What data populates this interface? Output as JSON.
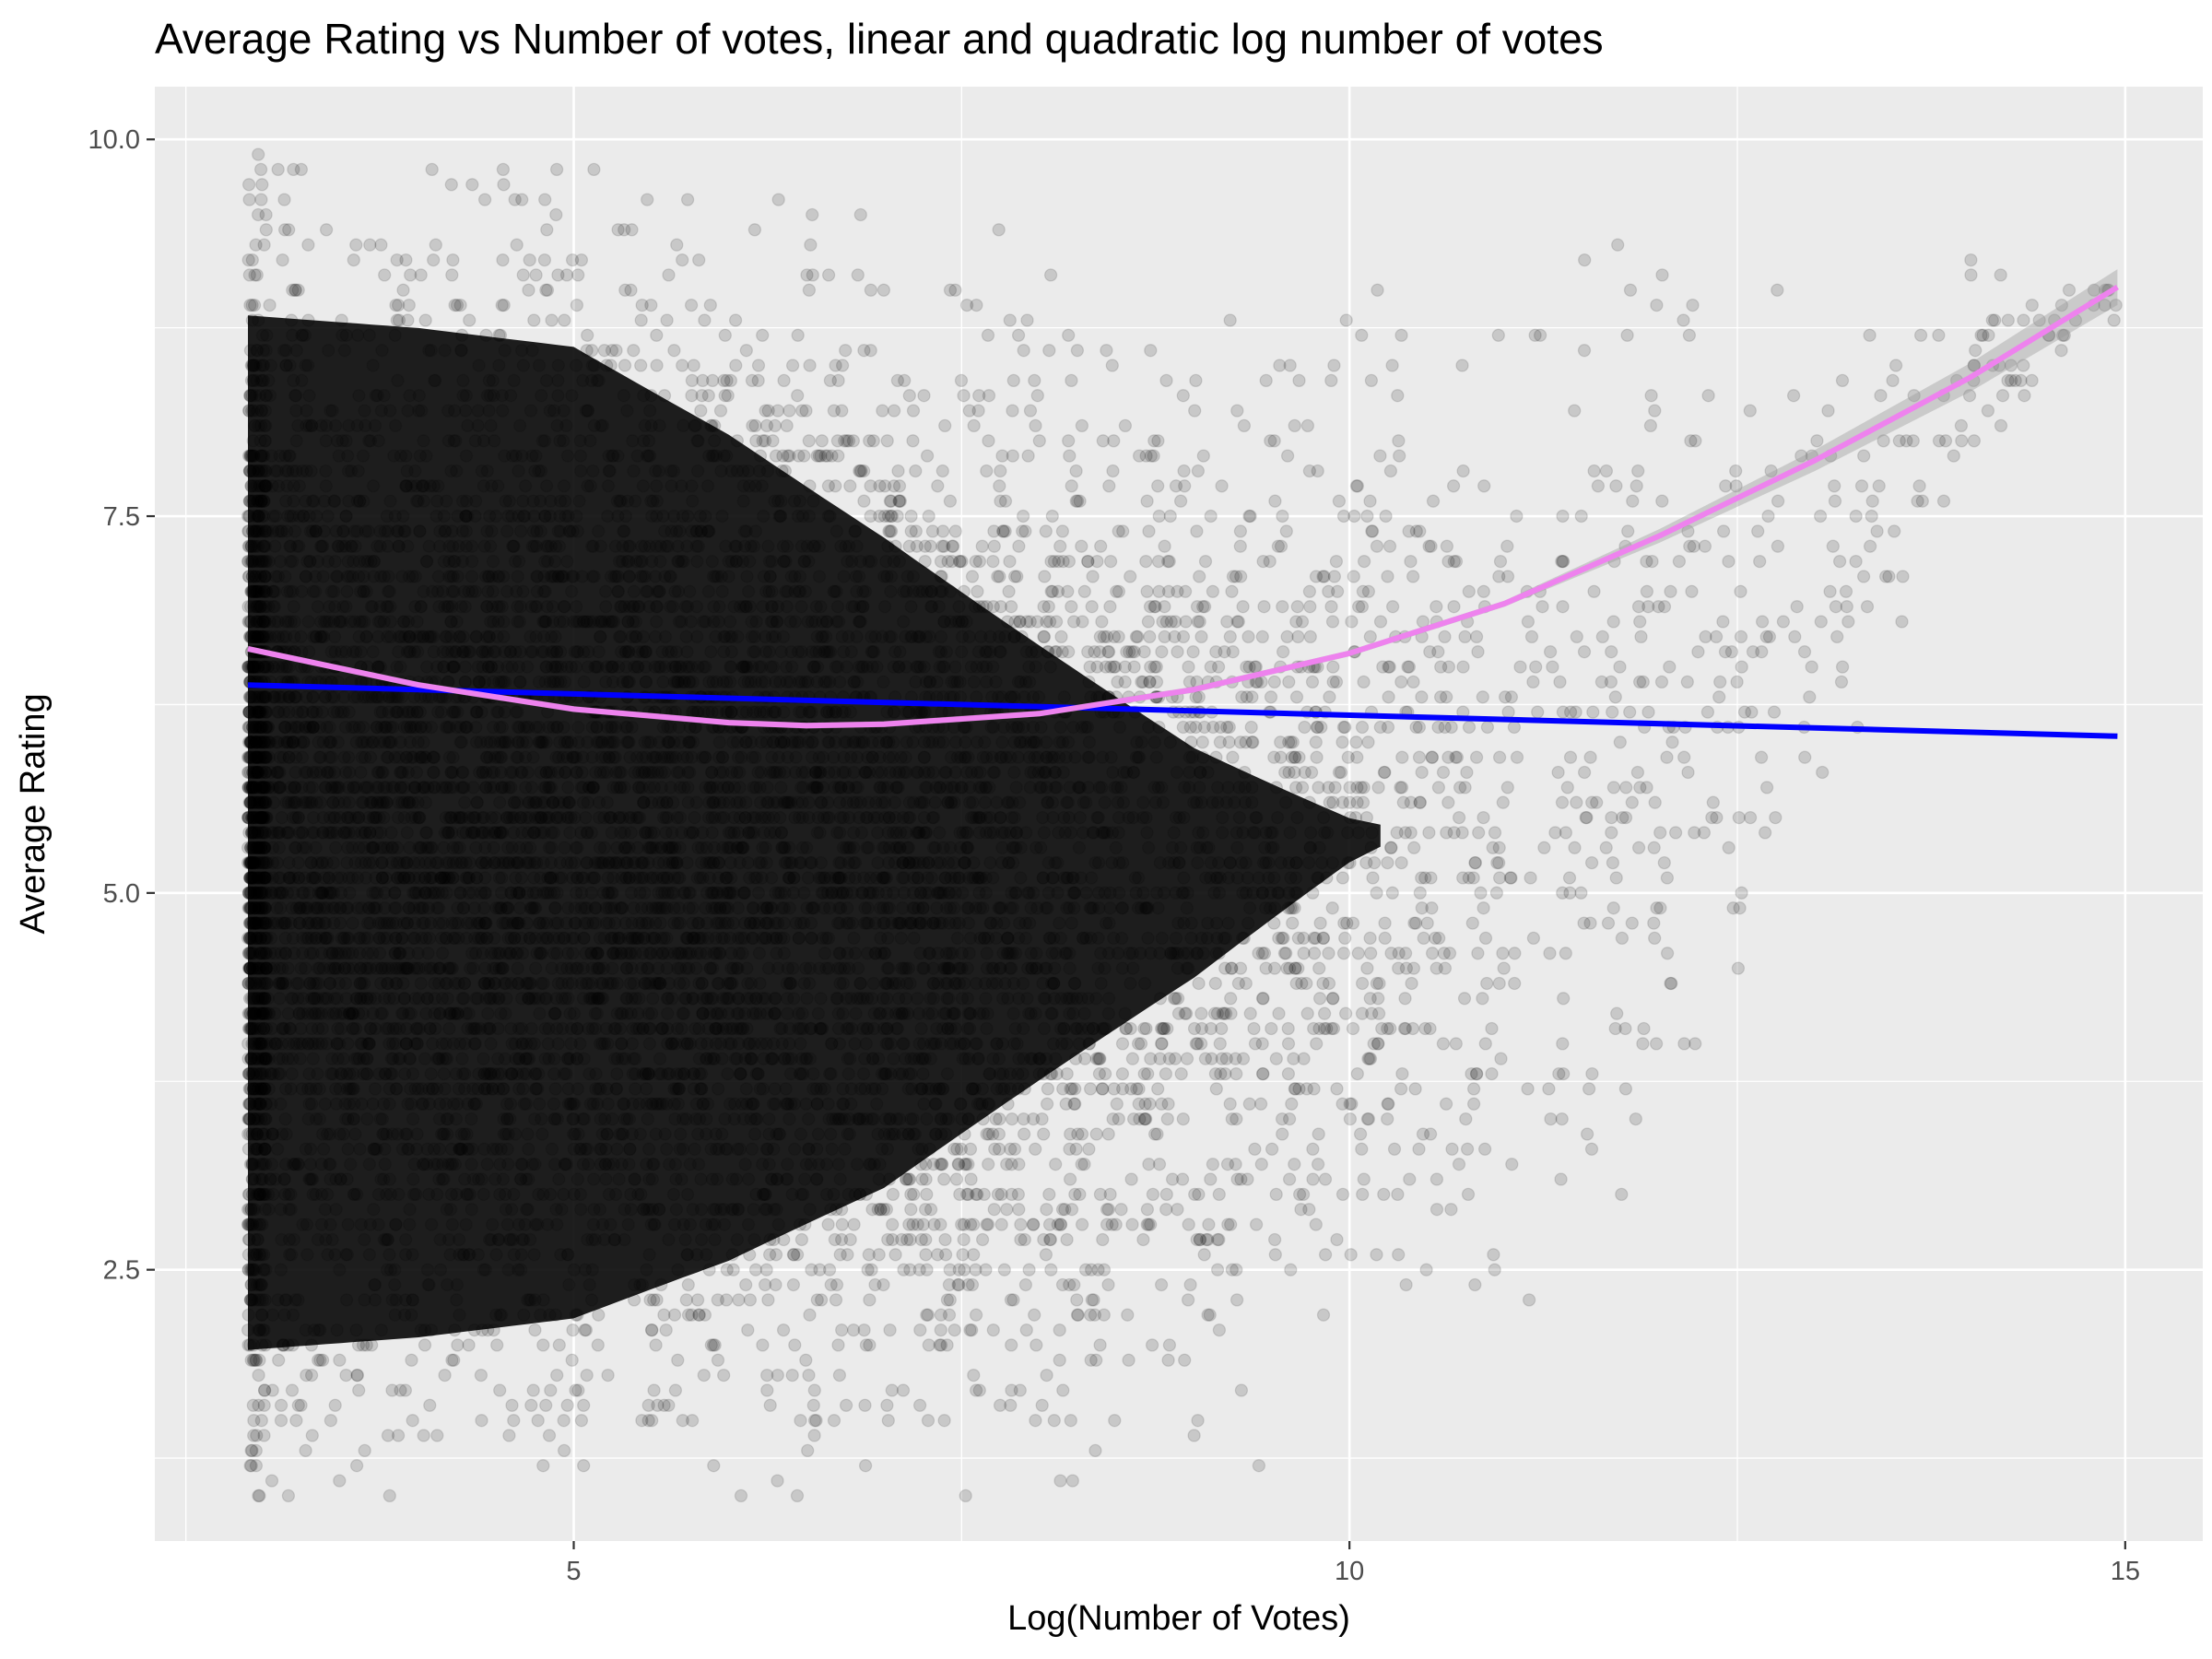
{
  "chart_data": {
    "type": "scatter",
    "title": "Average Rating vs Number of votes, linear and quadratic log number of votes",
    "xlabel": "Log(Number of Votes)",
    "ylabel": "Average Rating",
    "xlim": [
      2.3,
      15.5
    ],
    "ylim": [
      0.7,
      10.35
    ],
    "x_ticks": [
      5,
      10,
      15
    ],
    "x_tick_labels": [
      "5",
      "10",
      "15"
    ],
    "y_ticks": [
      2.5,
      5.0,
      7.5,
      10.0
    ],
    "y_tick_labels": [
      "2.5",
      "5.0",
      "7.5",
      "10.0"
    ],
    "grid": true,
    "legend": "none",
    "colors": {
      "panel": "#ebebeb",
      "grid": "#ffffff",
      "points": "#000000",
      "linear_fit": "#0000ff",
      "quadratic_fit": "#ee82ee",
      "ribbon": "#999999"
    },
    "point_cloud": {
      "x_min": 2.9,
      "x_max": 14.95,
      "rating_step": 0.1,
      "point_alpha": 0.15
    },
    "series": [
      {
        "kind": "scatter-density",
        "x_center": [
          2.9,
          4,
          5,
          6,
          7,
          8,
          9,
          10,
          11,
          12,
          13,
          14,
          14.9
        ],
        "y_top": [
          9.8,
          9.8,
          9.8,
          9.6,
          9.4,
          9.3,
          9.2,
          9.2,
          9.2,
          9.3,
          9.2,
          9.1,
          9.3
        ],
        "y_bottom": [
          1.0,
          1.0,
          1.0,
          1.0,
          1.0,
          1.1,
          1.2,
          1.5,
          1.8,
          3.0,
          4.8,
          7.5,
          8.8
        ],
        "density": [
          1.0,
          0.98,
          0.95,
          0.85,
          0.72,
          0.55,
          0.38,
          0.22,
          0.12,
          0.07,
          0.04,
          0.022,
          0.01
        ]
      },
      {
        "kind": "linear-fit",
        "x": [
          2.9,
          14.95
        ],
        "y": [
          6.38,
          6.04
        ]
      },
      {
        "kind": "quadratic-fit",
        "x": [
          2.9,
          4,
          5,
          6,
          6.5,
          7,
          8,
          9,
          10,
          11,
          12,
          13,
          14,
          14.95
        ],
        "y": [
          6.62,
          6.38,
          6.22,
          6.13,
          6.11,
          6.12,
          6.19,
          6.35,
          6.59,
          6.92,
          7.37,
          7.87,
          8.42,
          9.02
        ]
      }
    ]
  }
}
